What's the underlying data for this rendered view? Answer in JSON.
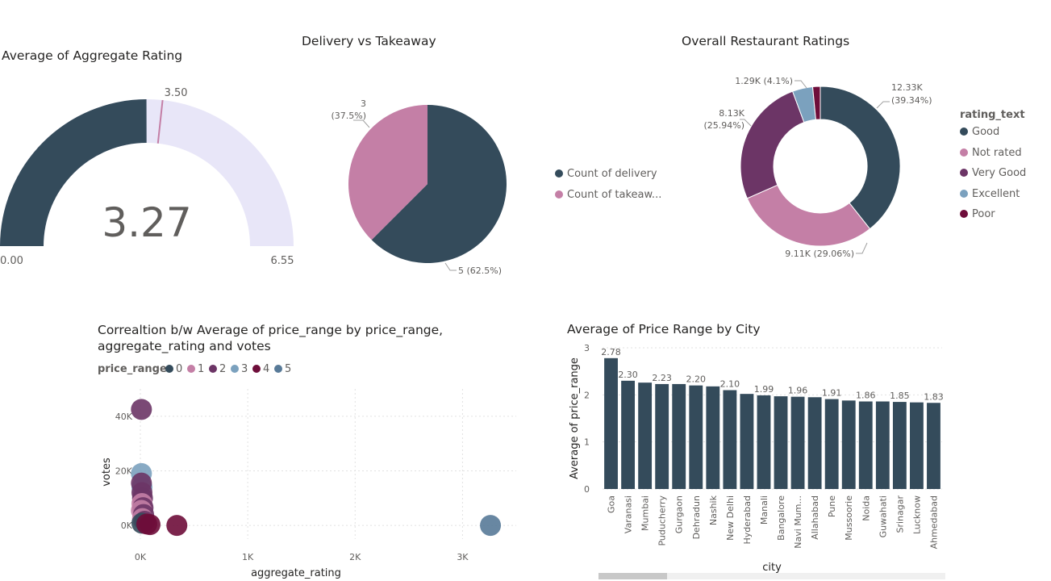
{
  "colors": {
    "navy": "#344b5b",
    "pink": "#c47fa6",
    "purple": "#6c3566",
    "lightblue": "#7ba1be",
    "maroon": "#6e0d3a",
    "steel": "#587a98",
    "gauge_bg": "#e8e6f8",
    "target": "#c47fa6"
  },
  "chart_data": [
    {
      "type": "gauge",
      "title": "Average of Aggregate Rating",
      "value": 3.27,
      "value_label": "3.27",
      "min": 0,
      "min_label": "0.00",
      "max": 6.55,
      "max_label": "6.55",
      "target": 3.5,
      "target_label": "3.50"
    },
    {
      "type": "pie",
      "title": "Delivery vs Takeaway",
      "slices": [
        {
          "name": "Count of delivery",
          "value": 5,
          "label": "5 (62.5%)"
        },
        {
          "name": "Count of takeaw...",
          "value": 3,
          "label": "3 (37.5%)"
        }
      ],
      "legend": "right"
    },
    {
      "type": "donut",
      "title": "Overall Restaurant Ratings",
      "legend_title": "rating_text",
      "legend": "right",
      "slices": [
        {
          "name": "Good",
          "value": 12330,
          "label_value": "12.33K",
          "label_pct": "(39.34%)"
        },
        {
          "name": "Not rated",
          "value": 9110,
          "label_value": "9.11K (29.06%)",
          "label_pct": ""
        },
        {
          "name": "Very Good",
          "value": 8130,
          "label_value": "8.13K",
          "label_pct": "(25.94%)"
        },
        {
          "name": "Excellent",
          "value": 1290,
          "label_value": "1.29K (4.1%)",
          "label_pct": ""
        },
        {
          "name": "Poor",
          "value": 480,
          "label_value": "",
          "label_pct": ""
        }
      ]
    },
    {
      "type": "scatter",
      "title_line1": "Correaltion b/w Average of price_range by price_range,",
      "title_line2": "aggregate_rating and votes",
      "legend_title": "price_range",
      "legend": "top-left",
      "categories": [
        "0",
        "1",
        "2",
        "3",
        "4",
        "5"
      ],
      "xlabel": "aggregate_rating",
      "ylabel": "votes",
      "xlim": [
        0,
        3500
      ],
      "ylim": [
        -5000,
        50000
      ],
      "xticks": [
        "0K",
        "1K",
        "2K",
        "3K"
      ],
      "xtick_values": [
        0,
        1000,
        2000,
        3000
      ],
      "yticks": [
        "0K",
        "20K",
        "40K"
      ],
      "ytick_values": [
        0,
        20000,
        40000
      ],
      "points": [
        {
          "x": 10,
          "y": 42500,
          "cat": 2
        },
        {
          "x": 10,
          "y": 19000,
          "cat": 3
        },
        {
          "x": 15,
          "y": 14000,
          "cat": 3
        },
        {
          "x": 10,
          "y": 15500,
          "cat": 2
        },
        {
          "x": 15,
          "y": 12000,
          "cat": 2
        },
        {
          "x": 20,
          "y": 10000,
          "cat": 2
        },
        {
          "x": 15,
          "y": 8000,
          "cat": 1
        },
        {
          "x": 25,
          "y": 6500,
          "cat": 2
        },
        {
          "x": 10,
          "y": 5500,
          "cat": 1
        },
        {
          "x": 30,
          "y": 4000,
          "cat": 2
        },
        {
          "x": 20,
          "y": 2500,
          "cat": 1
        },
        {
          "x": 40,
          "y": 1500,
          "cat": 2
        },
        {
          "x": 15,
          "y": 800,
          "cat": 0
        },
        {
          "x": 60,
          "y": 500,
          "cat": 4
        },
        {
          "x": 90,
          "y": 300,
          "cat": 4
        },
        {
          "x": 340,
          "y": 0,
          "cat": 4
        },
        {
          "x": 3260,
          "y": 0,
          "cat": 5
        }
      ]
    },
    {
      "type": "bar",
      "title": "Average of Price Range by City",
      "xlabel": "city",
      "ylabel": "Average of price_range",
      "ylim": [
        0,
        3
      ],
      "yticks": [
        0,
        1,
        2,
        3
      ],
      "categories": [
        "Goa",
        "Varanasi",
        "Mumbai",
        "Puducherry",
        "Gurgaon",
        "Dehradun",
        "Nashik",
        "New Delhi",
        "Hyderabad",
        "Manali",
        "Bangalore",
        "Navi Mum...",
        "Allahabad",
        "Pune",
        "Mussoorie",
        "Noida",
        "Guwahati",
        "Srinagar",
        "Lucknow",
        "Ahmedabad"
      ],
      "values": [
        2.78,
        2.3,
        2.26,
        2.23,
        2.23,
        2.2,
        2.18,
        2.1,
        2.02,
        1.99,
        1.97,
        1.96,
        1.95,
        1.91,
        1.88,
        1.86,
        1.86,
        1.85,
        1.84,
        1.83
      ],
      "data_labels": [
        "2.78",
        "2.30",
        "",
        "2.23",
        "",
        "2.20",
        "",
        "2.10",
        "",
        "1.99",
        "",
        "1.96",
        "",
        "1.91",
        "",
        "1.86",
        "",
        "1.85",
        "",
        "1.83"
      ]
    }
  ]
}
